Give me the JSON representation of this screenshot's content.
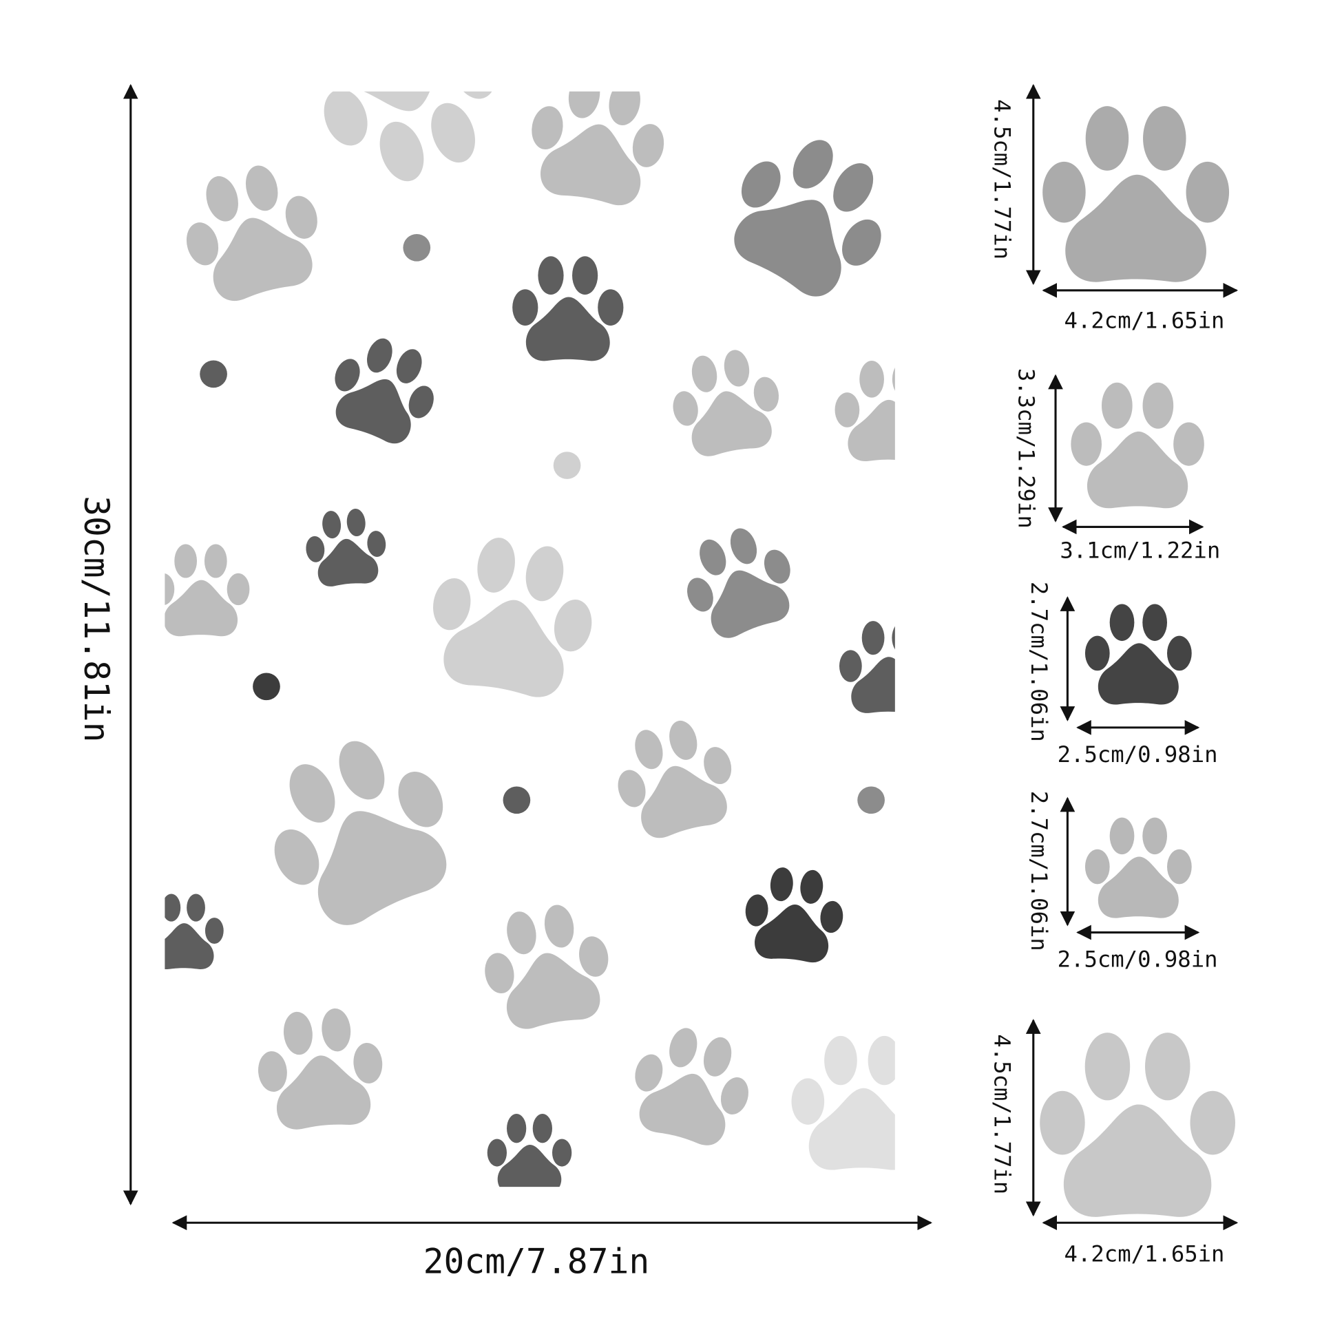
{
  "main": {
    "height_label": "30cm/11.81in",
    "width_label": "20cm/7.87in"
  },
  "stickers": [
    {
      "height_label": "4.5cm/1.77in",
      "width_label": "4.2cm/1.65in"
    },
    {
      "height_label": "3.3cm/1.29in",
      "width_label": "3.1cm/1.22in"
    },
    {
      "height_label": "2.7cm/1.06in",
      "width_label": "2.5cm/0.98in"
    },
    {
      "height_label": "2.7cm/1.06in",
      "width_label": "2.5cm/0.98in"
    },
    {
      "height_label": "4.5cm/1.77in",
      "width_label": "4.2cm/1.65in"
    }
  ]
}
